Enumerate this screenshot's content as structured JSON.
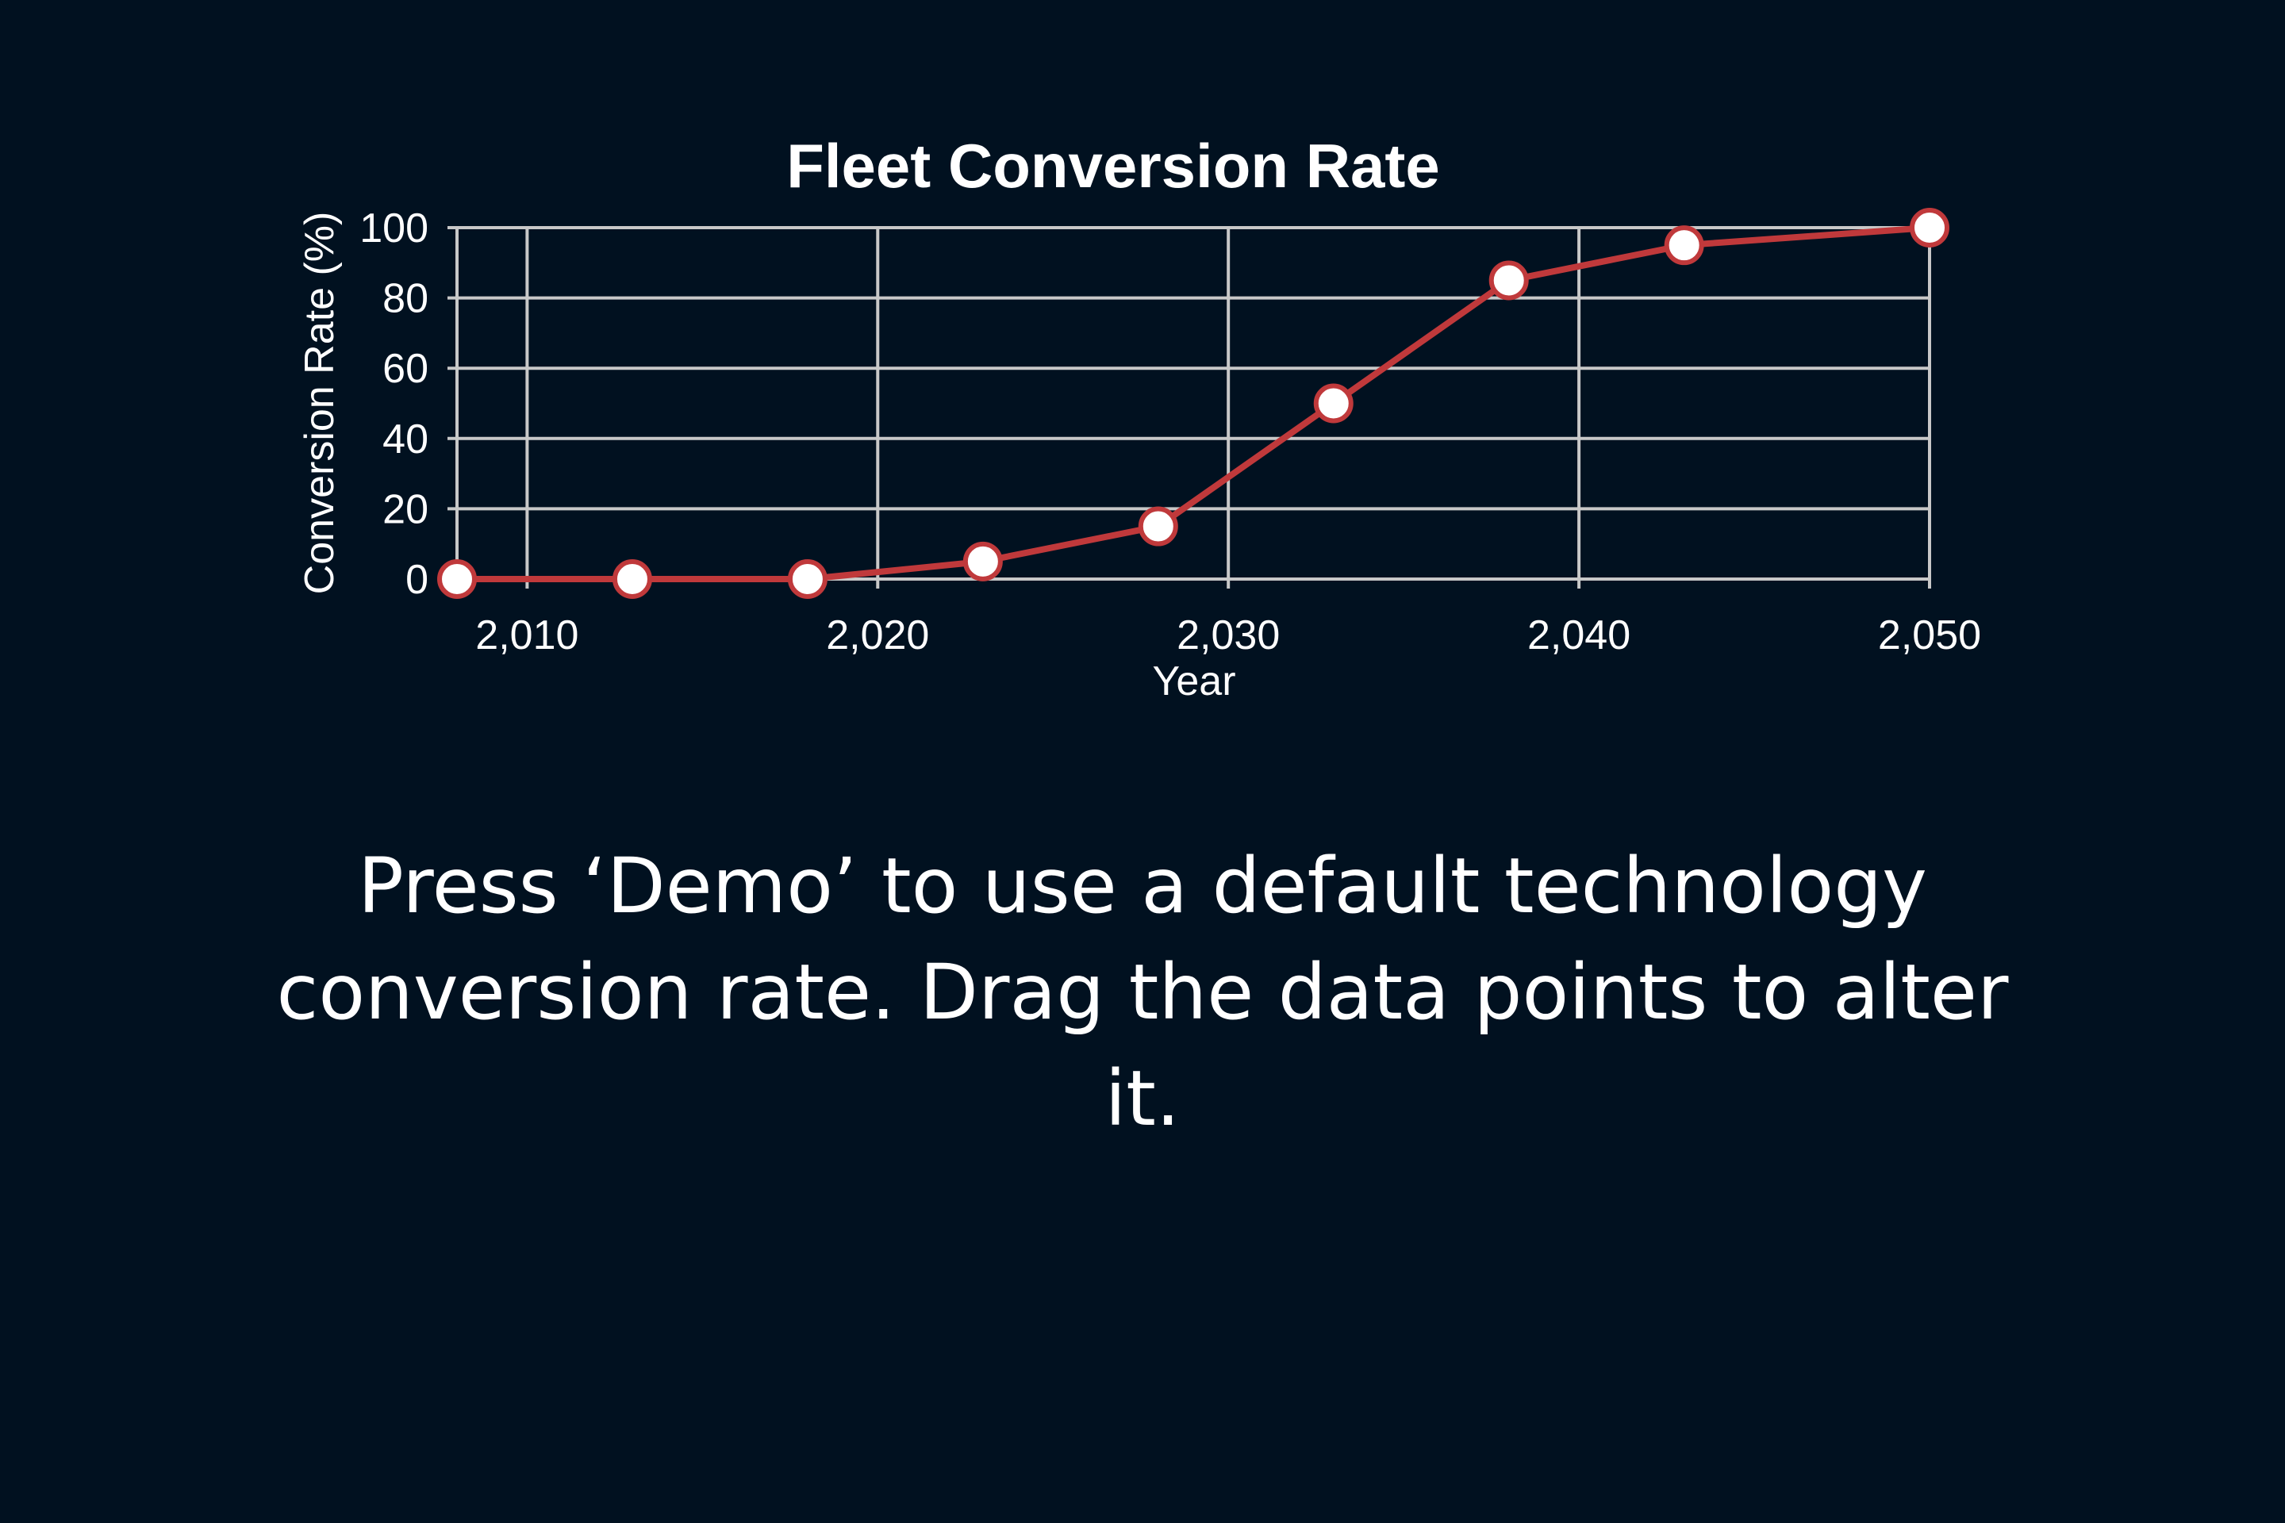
{
  "chart_data": {
    "type": "line",
    "title": "Fleet Conversion Rate",
    "xlabel": "Year",
    "ylabel": "Conversion Rate (%)",
    "xlim": [
      2008,
      2050
    ],
    "ylim": [
      0,
      100
    ],
    "xticks": [
      2010,
      2020,
      2030,
      2040,
      2050
    ],
    "xtick_labels": [
      "2,010",
      "2,020",
      "2,030",
      "2,040",
      "2,050"
    ],
    "yticks": [
      0,
      20,
      40,
      60,
      80,
      100
    ],
    "ytick_labels": [
      "0",
      "20",
      "40",
      "60",
      "80",
      "100"
    ],
    "grid": true,
    "series": [
      {
        "x": [
          2008,
          2013,
          2018,
          2023,
          2028,
          2033,
          2038,
          2043,
          2050
        ],
        "y": [
          0,
          0,
          0,
          5,
          15,
          50,
          85,
          95,
          100
        ]
      }
    ],
    "colors": {
      "line": "#c0393b",
      "marker_fill": "#ffffff",
      "marker_stroke": "#c0393b",
      "grid": "#c8c8c8",
      "background": "#011120"
    }
  },
  "instructions": {
    "text": "Press ‘Demo’ to use a default technology conversion rate. Drag the data points to alter it."
  }
}
